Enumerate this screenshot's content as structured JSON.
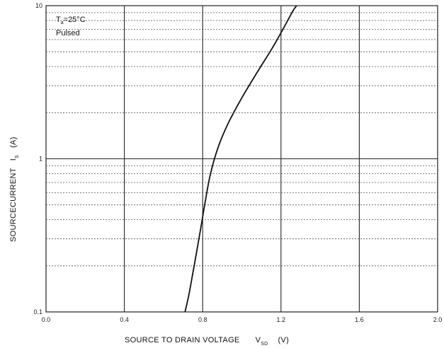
{
  "chart_data": {
    "type": "line",
    "x_axis": {
      "label_main": "SOURCE TO DRAIN VOLTAGE",
      "label_symbol": "V",
      "label_subscript": "SD",
      "label_unit": "(V)",
      "range": [
        0.0,
        2.0
      ],
      "ticks": [
        0.0,
        0.4,
        0.8,
        1.2,
        1.6,
        2.0
      ],
      "tick_labels": [
        "0.0",
        "0.4",
        "0.8",
        "1.2",
        "1.6",
        "2.0"
      ]
    },
    "y_axis": {
      "label_main": "SOURCECURRENT",
      "label_symbol": "I",
      "label_subscript": "S",
      "label_unit": "(A)",
      "scale": "log",
      "range": [
        0.1,
        10
      ],
      "major_ticks": [
        0.1,
        1,
        10
      ],
      "tick_labels": [
        "0.1",
        "1",
        "10"
      ]
    },
    "annotation": {
      "line1_symbol": "T",
      "line1_subscript": "a",
      "line1_rest": "=25°C",
      "line2": "Pulsed"
    },
    "grid": true,
    "series": [
      {
        "x": [
          0.71,
          0.73,
          0.75,
          0.77,
          0.79,
          0.81,
          0.84,
          0.88,
          0.93,
          1.0,
          1.08,
          1.16,
          1.22,
          1.26,
          1.28
        ],
        "y": [
          0.1,
          0.13,
          0.18,
          0.25,
          0.35,
          0.5,
          0.8,
          1.2,
          1.7,
          2.5,
          3.7,
          5.4,
          7.4,
          9.2,
          10
        ]
      }
    ]
  }
}
